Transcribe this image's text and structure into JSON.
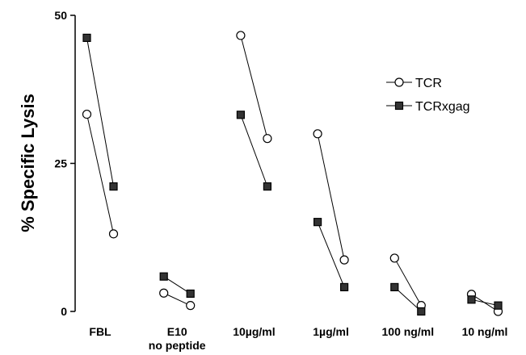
{
  "chart_data": {
    "type": "paired-line",
    "y_label": "% Specific Lysis",
    "categories": [
      "FBL",
      [
        "E10",
        "no peptide"
      ],
      "10µg/ml",
      "1µg/ml",
      "100 ng/ml",
      "10 ng/ml"
    ],
    "series": [
      {
        "name": "TCR",
        "marker": "open-circle",
        "color": "#000000",
        "values": [
          [
            33.3,
            13.1
          ],
          [
            3.1,
            1.0
          ],
          [
            46.6,
            29.2
          ],
          [
            30.0,
            8.7
          ],
          [
            9.0,
            1.0
          ],
          [
            2.9,
            0
          ]
        ]
      },
      {
        "name": "TCRxgag",
        "marker": "filled-square",
        "color": "#000000",
        "values": [
          [
            46.2,
            21.1
          ],
          [
            5.9,
            3.0
          ],
          [
            33.2,
            21.1
          ],
          [
            15.1,
            4.1
          ],
          [
            4.1,
            0
          ],
          [
            2.0,
            1.0
          ]
        ]
      }
    ],
    "ylim": [
      0,
      50
    ],
    "yticks": [
      0,
      25,
      50
    ],
    "grid": false,
    "legend": "upper-right"
  }
}
